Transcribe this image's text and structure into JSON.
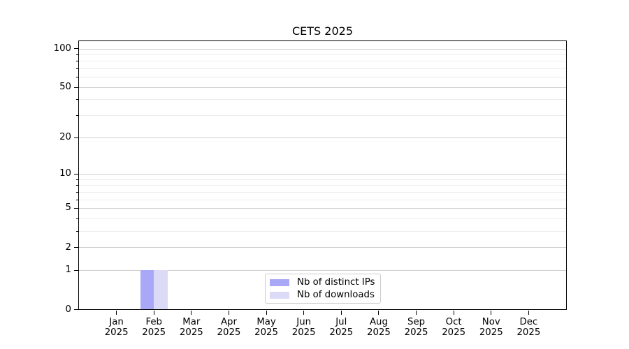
{
  "chart_data": {
    "type": "bar",
    "title": "CETS 2025",
    "categories": [
      "Jan 2025",
      "Feb 2025",
      "Mar 2025",
      "Apr 2025",
      "May 2025",
      "Jun 2025",
      "Jul 2025",
      "Aug 2025",
      "Sep 2025",
      "Oct 2025",
      "Nov 2025",
      "Dec 2025"
    ],
    "series": [
      {
        "name": "Nb of distinct IPs",
        "color": "#a8a8f6",
        "values": [
          0,
          1,
          0,
          0,
          0,
          0,
          0,
          0,
          0,
          0,
          0,
          0
        ]
      },
      {
        "name": "Nb of downloads",
        "color": "#dbdbf8",
        "values": [
          0,
          1,
          0,
          0,
          0,
          0,
          0,
          0,
          0,
          0,
          0,
          0
        ]
      }
    ],
    "y_scale": "log1p",
    "y_ticks": [
      0,
      1,
      2,
      5,
      10,
      20,
      50,
      100
    ],
    "y_minor_ticks": [
      3,
      4,
      6,
      7,
      8,
      9,
      30,
      40,
      60,
      70,
      80,
      90
    ],
    "ylim": [
      0,
      114
    ],
    "xlabel": "",
    "ylabel": "",
    "grid": true,
    "legend_position": "lower center",
    "colors": {
      "axis": "#000000",
      "gridline_major": "#cfcfcf",
      "gridline_minor": "#ececec",
      "background": "#ffffff"
    }
  }
}
